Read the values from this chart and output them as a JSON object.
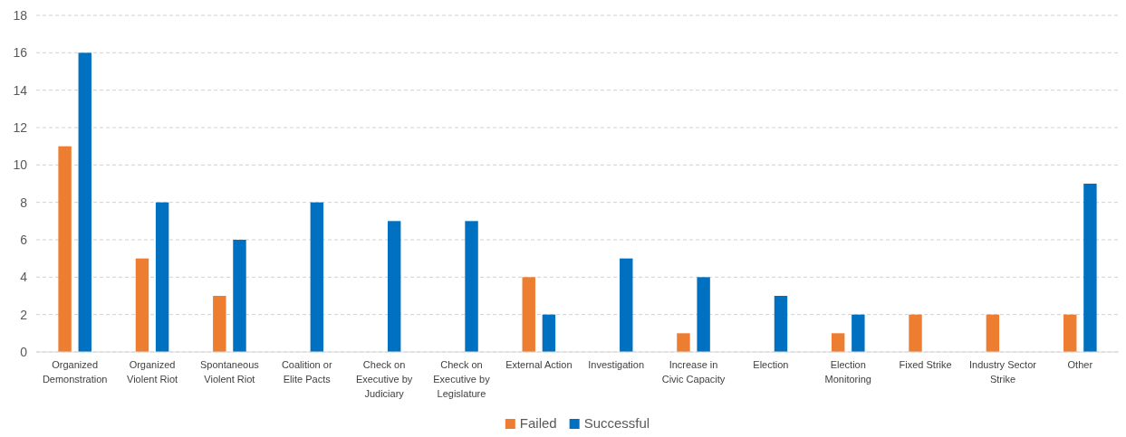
{
  "chart_data": {
    "type": "bar",
    "categories": [
      "Organized Demonstration",
      "Organized Violent Riot",
      "Spontaneous Violent Riot",
      "Coalition or Elite Pacts",
      "Check on Executive by Judiciary",
      "Check on Executive by Legislature",
      "External Action",
      "Investigation",
      "Increase in Civic Capacity",
      "Election",
      "Election Monitoring",
      "Fixed Strike",
      "Industry Sector Strike",
      "Other"
    ],
    "series": [
      {
        "name": "Failed",
        "color": "#ed7d31",
        "values": [
          11,
          5,
          3,
          0,
          0,
          0,
          4,
          0,
          1,
          0,
          1,
          2,
          2,
          2
        ]
      },
      {
        "name": "Successful",
        "color": "#0070c0",
        "values": [
          16,
          8,
          6,
          8,
          7,
          7,
          2,
          5,
          4,
          3,
          2,
          0,
          0,
          9
        ]
      }
    ],
    "ylim": [
      0,
      18
    ],
    "yticks": [
      0,
      2,
      4,
      6,
      8,
      10,
      12,
      14,
      16,
      18
    ],
    "grid": "y",
    "legend": "bottom"
  }
}
